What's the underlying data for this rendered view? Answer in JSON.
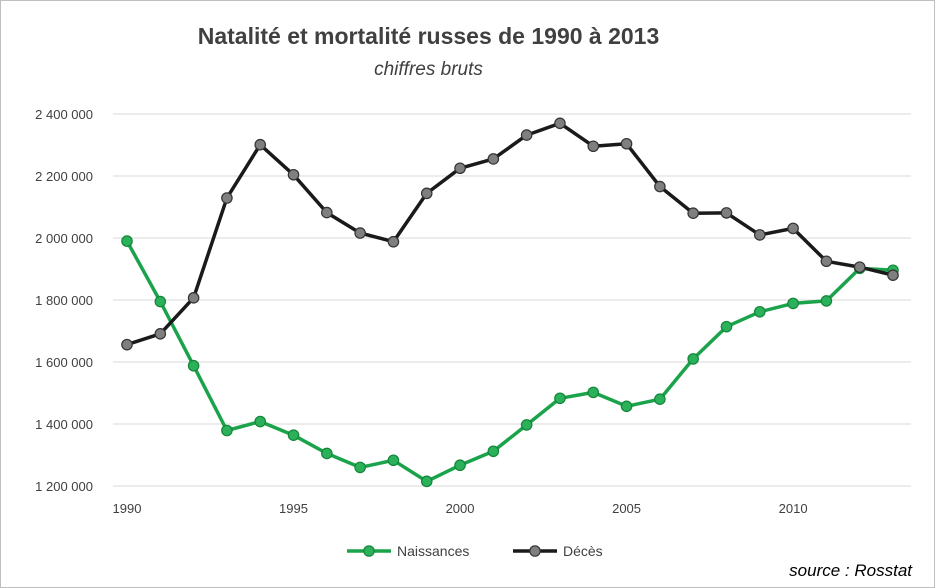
{
  "chart_data": {
    "type": "line",
    "title": "Natalité et mortalité russes de 1990 à 2013",
    "subtitle": "chiffres bruts",
    "xlabel": "",
    "ylabel": "",
    "x": [
      1990,
      1991,
      1992,
      1993,
      1994,
      1995,
      1996,
      1997,
      1998,
      1999,
      2000,
      2001,
      2002,
      2003,
      2004,
      2005,
      2006,
      2007,
      2008,
      2009,
      2010,
      2011,
      2012,
      2013
    ],
    "xlim": [
      1990,
      2013
    ],
    "ylim": [
      1200000,
      2400000
    ],
    "x_ticks": [
      1990,
      1995,
      2000,
      2005,
      2010
    ],
    "x_tick_labels": [
      "1990",
      "1995",
      "2000",
      "2005",
      "2010"
    ],
    "y_ticks": [
      1200000,
      1400000,
      1600000,
      1800000,
      2000000,
      2200000,
      2400000
    ],
    "y_tick_labels": [
      "1 200 000",
      "1 400 000",
      "1 600 000",
      "1 800 000",
      "2 000 000",
      "2 200 000",
      "2 400 000"
    ],
    "grid": "horizontal",
    "legend_position": "bottom",
    "series": [
      {
        "name": "Naissances",
        "color": "#1aa34a",
        "values": [
          1990000,
          1795000,
          1588000,
          1379000,
          1408000,
          1364000,
          1305000,
          1260000,
          1283000,
          1215000,
          1267000,
          1312000,
          1397000,
          1483000,
          1502000,
          1457000,
          1480000,
          1610000,
          1714000,
          1762000,
          1789000,
          1797000,
          1902000,
          1896000
        ]
      },
      {
        "name": "Décès",
        "color": "#1a1a1a",
        "values": [
          1656000,
          1691000,
          1807000,
          2129000,
          2301000,
          2204000,
          2082000,
          2016000,
          1988000,
          2144000,
          2225000,
          2255000,
          2332000,
          2370000,
          2296000,
          2304000,
          2166000,
          2080000,
          2081000,
          2010000,
          2031000,
          1925000,
          1906000,
          1880000
        ]
      }
    ],
    "source": "source : Rosstat"
  }
}
